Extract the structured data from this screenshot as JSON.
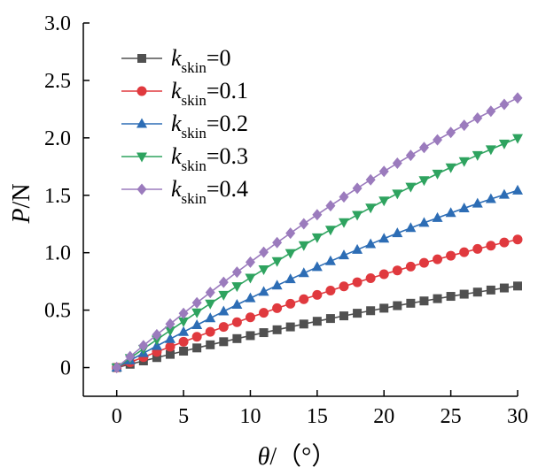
{
  "chart_data": {
    "type": "line",
    "xlabel": {
      "var": "θ",
      "rest": "/（°）"
    },
    "ylabel": {
      "var": "P",
      "rest": "/N"
    },
    "xlim": [
      -2.5,
      30
    ],
    "ylim": [
      -0.25,
      3.0
    ],
    "xticks": [
      0,
      5,
      10,
      15,
      20,
      25,
      30
    ],
    "yticks": [
      0,
      0.5,
      1.0,
      1.5,
      2.0,
      2.5,
      3.0
    ],
    "ytick_labels": [
      "0",
      "0.5",
      "1.0",
      "1.5",
      "2.0",
      "2.5",
      "3.0"
    ],
    "x": [
      0,
      1,
      2,
      3,
      4,
      5,
      6,
      7,
      8,
      9,
      10,
      11,
      12,
      13,
      14,
      15,
      16,
      17,
      18,
      19,
      20,
      21,
      22,
      23,
      24,
      25,
      26,
      27,
      28,
      29,
      30
    ],
    "legend_position": "top-left",
    "series": [
      {
        "name": "kskin=0",
        "k_var": "k",
        "k_sub": "skin",
        "k_val": "=0",
        "color": "#505050",
        "marker": "square",
        "values": [
          0.0,
          0.029,
          0.058,
          0.087,
          0.115,
          0.143,
          0.171,
          0.198,
          0.225,
          0.252,
          0.278,
          0.304,
          0.329,
          0.354,
          0.379,
          0.403,
          0.427,
          0.45,
          0.473,
          0.495,
          0.517,
          0.539,
          0.56,
          0.58,
          0.6,
          0.62,
          0.639,
          0.657,
          0.675,
          0.693,
          0.71
        ]
      },
      {
        "name": "kskin=0.1",
        "k_var": "k",
        "k_sub": "skin",
        "k_val": "=0.1",
        "color": "#e0393e",
        "marker": "circle",
        "values": [
          0.0,
          0.046,
          0.091,
          0.136,
          0.181,
          0.225,
          0.268,
          0.311,
          0.354,
          0.395,
          0.437,
          0.477,
          0.517,
          0.556,
          0.595,
          0.633,
          0.67,
          0.707,
          0.743,
          0.778,
          0.813,
          0.846,
          0.879,
          0.912,
          0.943,
          0.974,
          1.004,
          1.033,
          1.061,
          1.089,
          1.115
        ]
      },
      {
        "name": "kskin=0.2",
        "k_var": "k",
        "k_sub": "skin",
        "k_val": "=0.2",
        "color": "#2d6db5",
        "marker": "triangle-up",
        "values": [
          0.0,
          0.063,
          0.126,
          0.188,
          0.249,
          0.31,
          0.37,
          0.43,
          0.489,
          0.547,
          0.604,
          0.66,
          0.715,
          0.769,
          0.822,
          0.875,
          0.926,
          0.977,
          1.026,
          1.075,
          1.123,
          1.17,
          1.215,
          1.26,
          1.303,
          1.346,
          1.387,
          1.428,
          1.467,
          1.505,
          1.542
        ]
      },
      {
        "name": "kskin=0.3",
        "k_var": "k",
        "k_sub": "skin",
        "k_val": "=0.3",
        "color": "#2ea35f",
        "marker": "triangle-down",
        "values": [
          0.0,
          0.082,
          0.163,
          0.243,
          0.323,
          0.402,
          0.48,
          0.557,
          0.633,
          0.708,
          0.782,
          0.855,
          0.926,
          0.997,
          1.065,
          1.133,
          1.2,
          1.265,
          1.329,
          1.392,
          1.454,
          1.515,
          1.574,
          1.631,
          1.688,
          1.743,
          1.797,
          1.85,
          1.9,
          1.95,
          1.998
        ]
      },
      {
        "name": "kskin=0.4",
        "k_var": "k",
        "k_sub": "skin",
        "k_val": "=0.4",
        "color": "#9b7bbd",
        "marker": "diamond",
        "values": [
          0.0,
          0.096,
          0.191,
          0.286,
          0.38,
          0.472,
          0.564,
          0.654,
          0.743,
          0.831,
          0.918,
          1.004,
          1.088,
          1.17,
          1.252,
          1.331,
          1.409,
          1.486,
          1.561,
          1.635,
          1.708,
          1.779,
          1.848,
          1.916,
          1.982,
          2.047,
          2.11,
          2.172,
          2.232,
          2.291,
          2.347
        ]
      }
    ]
  }
}
